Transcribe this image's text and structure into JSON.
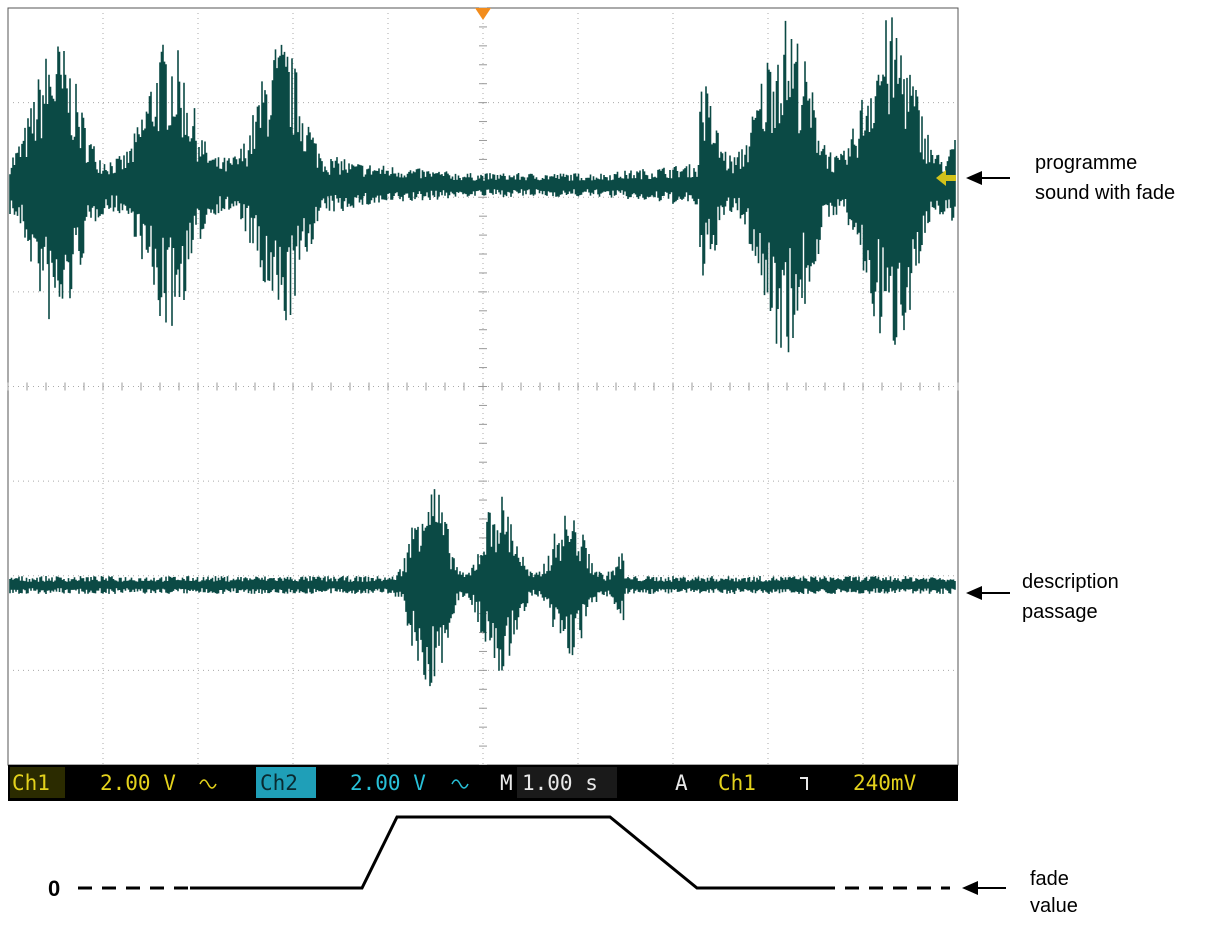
{
  "status_bar": {
    "ch1_label": "Ch1",
    "ch1_scale": "2.00 V",
    "ch2_label": "Ch2",
    "ch2_scale": "2.00 V",
    "timebase_label": "M",
    "timebase": "1.00 s",
    "trigger_label": "A",
    "trigger_source": "Ch1",
    "trigger_level": "240mV"
  },
  "annotations": {
    "programme": [
      "programme",
      "sound with fade"
    ],
    "description": [
      "description",
      "passage"
    ],
    "fade": [
      "fade",
      "value"
    ]
  },
  "fade": {
    "zero_label": "0"
  }
}
